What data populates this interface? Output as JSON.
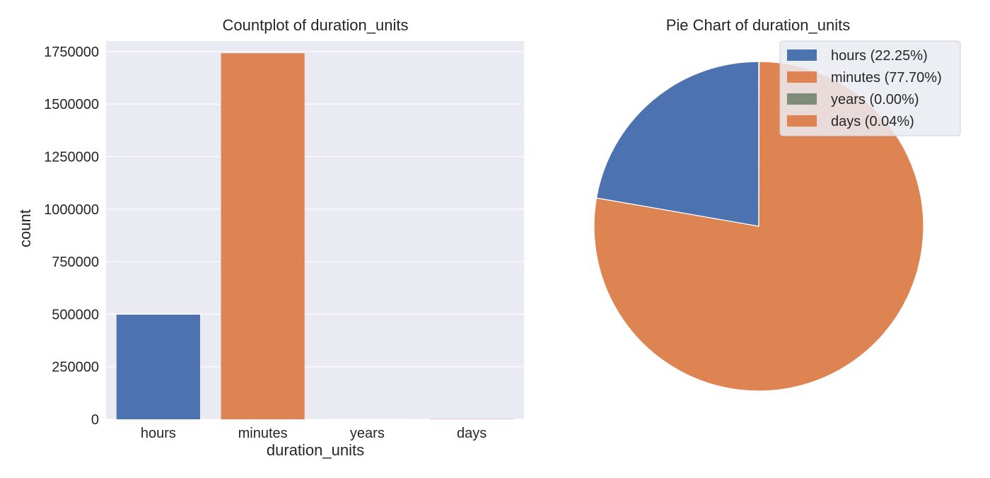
{
  "chart_data": [
    {
      "type": "bar",
      "title": "Countplot of duration_units",
      "xlabel": "duration_units",
      "ylabel": "count",
      "categories": [
        "hours",
        "minutes",
        "years",
        "days"
      ],
      "values": [
        498000,
        1742000,
        30,
        900
      ],
      "colors": [
        "#4c72b0",
        "#dd8452",
        "#55a868",
        "#c44e52"
      ],
      "ylim": [
        0,
        1800000
      ],
      "yticks": [
        0,
        250000,
        500000,
        750000,
        1000000,
        1250000,
        1500000,
        1750000
      ],
      "ytick_labels": [
        "0",
        "250000",
        "500000",
        "750000",
        "1000000",
        "1250000",
        "1500000",
        "1750000"
      ],
      "grid": true,
      "background": "#eaeaf2"
    },
    {
      "type": "pie",
      "title": "Pie Chart of duration_units",
      "labels": [
        "hours",
        "minutes",
        "years",
        "days"
      ],
      "values": [
        22.25,
        77.7,
        0.0,
        0.04
      ],
      "legend_labels": [
        "hours (22.25%)",
        "minutes (77.70%)",
        "years (0.00%)",
        "days (0.04%)"
      ],
      "colors": [
        "#4c72b0",
        "#dd8452",
        "#7f8c7a",
        "#dd8452"
      ],
      "start_angle_deg": 90,
      "direction": "counterclockwise",
      "legend": "top-right"
    }
  ]
}
